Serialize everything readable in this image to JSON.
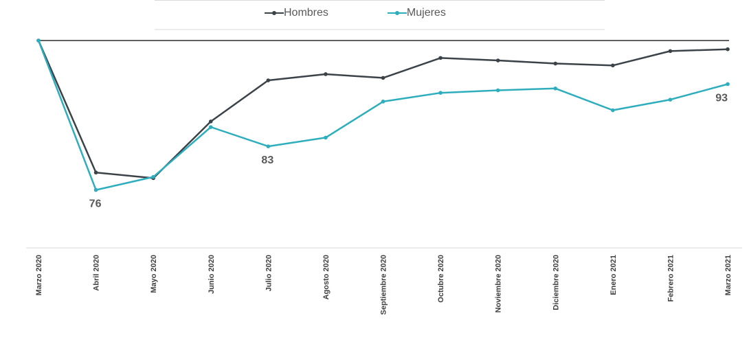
{
  "chart_data": {
    "type": "line",
    "categories": [
      "Marzo 2020",
      "Abril 2020",
      "Mayo 2020",
      "Junio 2020",
      "Julio 2020",
      "Agosto 2020",
      "Septiembre 2020",
      "Octubre 2020",
      "Noviembre 2020",
      "Diciembre 2020",
      "Enero 2021",
      "Febrero 2021",
      "Marzo 2021"
    ],
    "series": [
      {
        "name": "Hombres",
        "color": "#3b4248",
        "values": [
          100,
          78.8,
          77.9,
          87.0,
          93.6,
          94.6,
          94.0,
          97.2,
          96.8,
          96.3,
          96.0,
          98.3,
          98.6
        ]
      },
      {
        "name": "Mujeres",
        "color": "#2eadbd",
        "values": [
          100,
          76,
          78.1,
          86.1,
          83,
          84.4,
          90.2,
          91.6,
          92.0,
          92.3,
          88.8,
          90.5,
          93
        ]
      }
    ],
    "annotations": [
      {
        "series": 1,
        "index": 1,
        "text": "76"
      },
      {
        "series": 1,
        "index": 4,
        "text": "83"
      },
      {
        "series": 1,
        "index": 12,
        "text": "93"
      }
    ],
    "ylim": [
      70,
      100
    ],
    "reference_line": 100,
    "grid": false,
    "legend_position": "top-center"
  }
}
